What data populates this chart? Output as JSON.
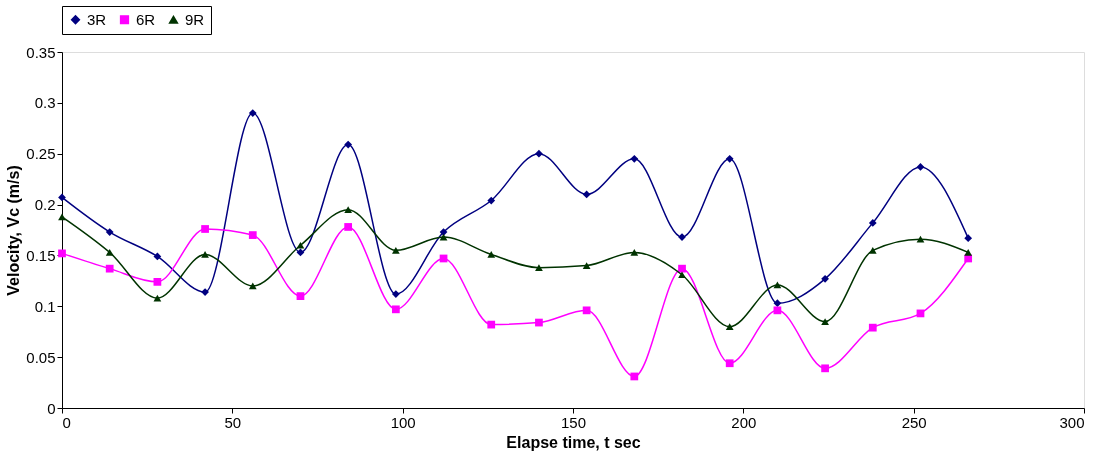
{
  "chart_data": {
    "type": "line",
    "xlabel": "Elapse time, t sec",
    "ylabel": "Velocity, Vc (m/s)",
    "x": [
      0,
      14,
      28,
      42,
      56,
      70,
      84,
      98,
      112,
      126,
      140,
      154,
      168,
      182,
      196,
      210,
      224,
      238,
      252,
      266
    ],
    "series": [
      {
        "name": "3R",
        "color": "#000080",
        "marker": "diamond",
        "values": [
          0.207,
          0.173,
          0.149,
          0.114,
          0.29,
          0.153,
          0.259,
          0.112,
          0.173,
          0.204,
          0.25,
          0.21,
          0.245,
          0.168,
          0.245,
          0.103,
          0.127,
          0.182,
          0.237,
          0.167
        ]
      },
      {
        "name": "6R",
        "color": "#ff00ff",
        "marker": "square",
        "values": [
          0.152,
          0.137,
          0.124,
          0.176,
          0.17,
          0.11,
          0.178,
          0.097,
          0.147,
          0.082,
          0.084,
          0.096,
          0.031,
          0.137,
          0.044,
          0.096,
          0.039,
          0.079,
          0.093,
          0.147
        ]
      },
      {
        "name": "9R",
        "color": "#003300",
        "marker": "triangle",
        "values": [
          0.188,
          0.153,
          0.108,
          0.151,
          0.12,
          0.16,
          0.195,
          0.155,
          0.168,
          0.151,
          0.138,
          0.14,
          0.153,
          0.131,
          0.08,
          0.121,
          0.085,
          0.155,
          0.166,
          0.153
        ]
      }
    ],
    "xlim": [
      0,
      300
    ],
    "xticks": [
      0,
      50,
      100,
      150,
      200,
      250,
      300
    ],
    "ylim": [
      0,
      0.35
    ],
    "yticks": [
      0,
      0.05,
      0.1,
      0.15,
      0.2,
      0.25,
      0.3,
      0.35
    ],
    "grid": false,
    "legend": "top",
    "line_style": "solid"
  }
}
